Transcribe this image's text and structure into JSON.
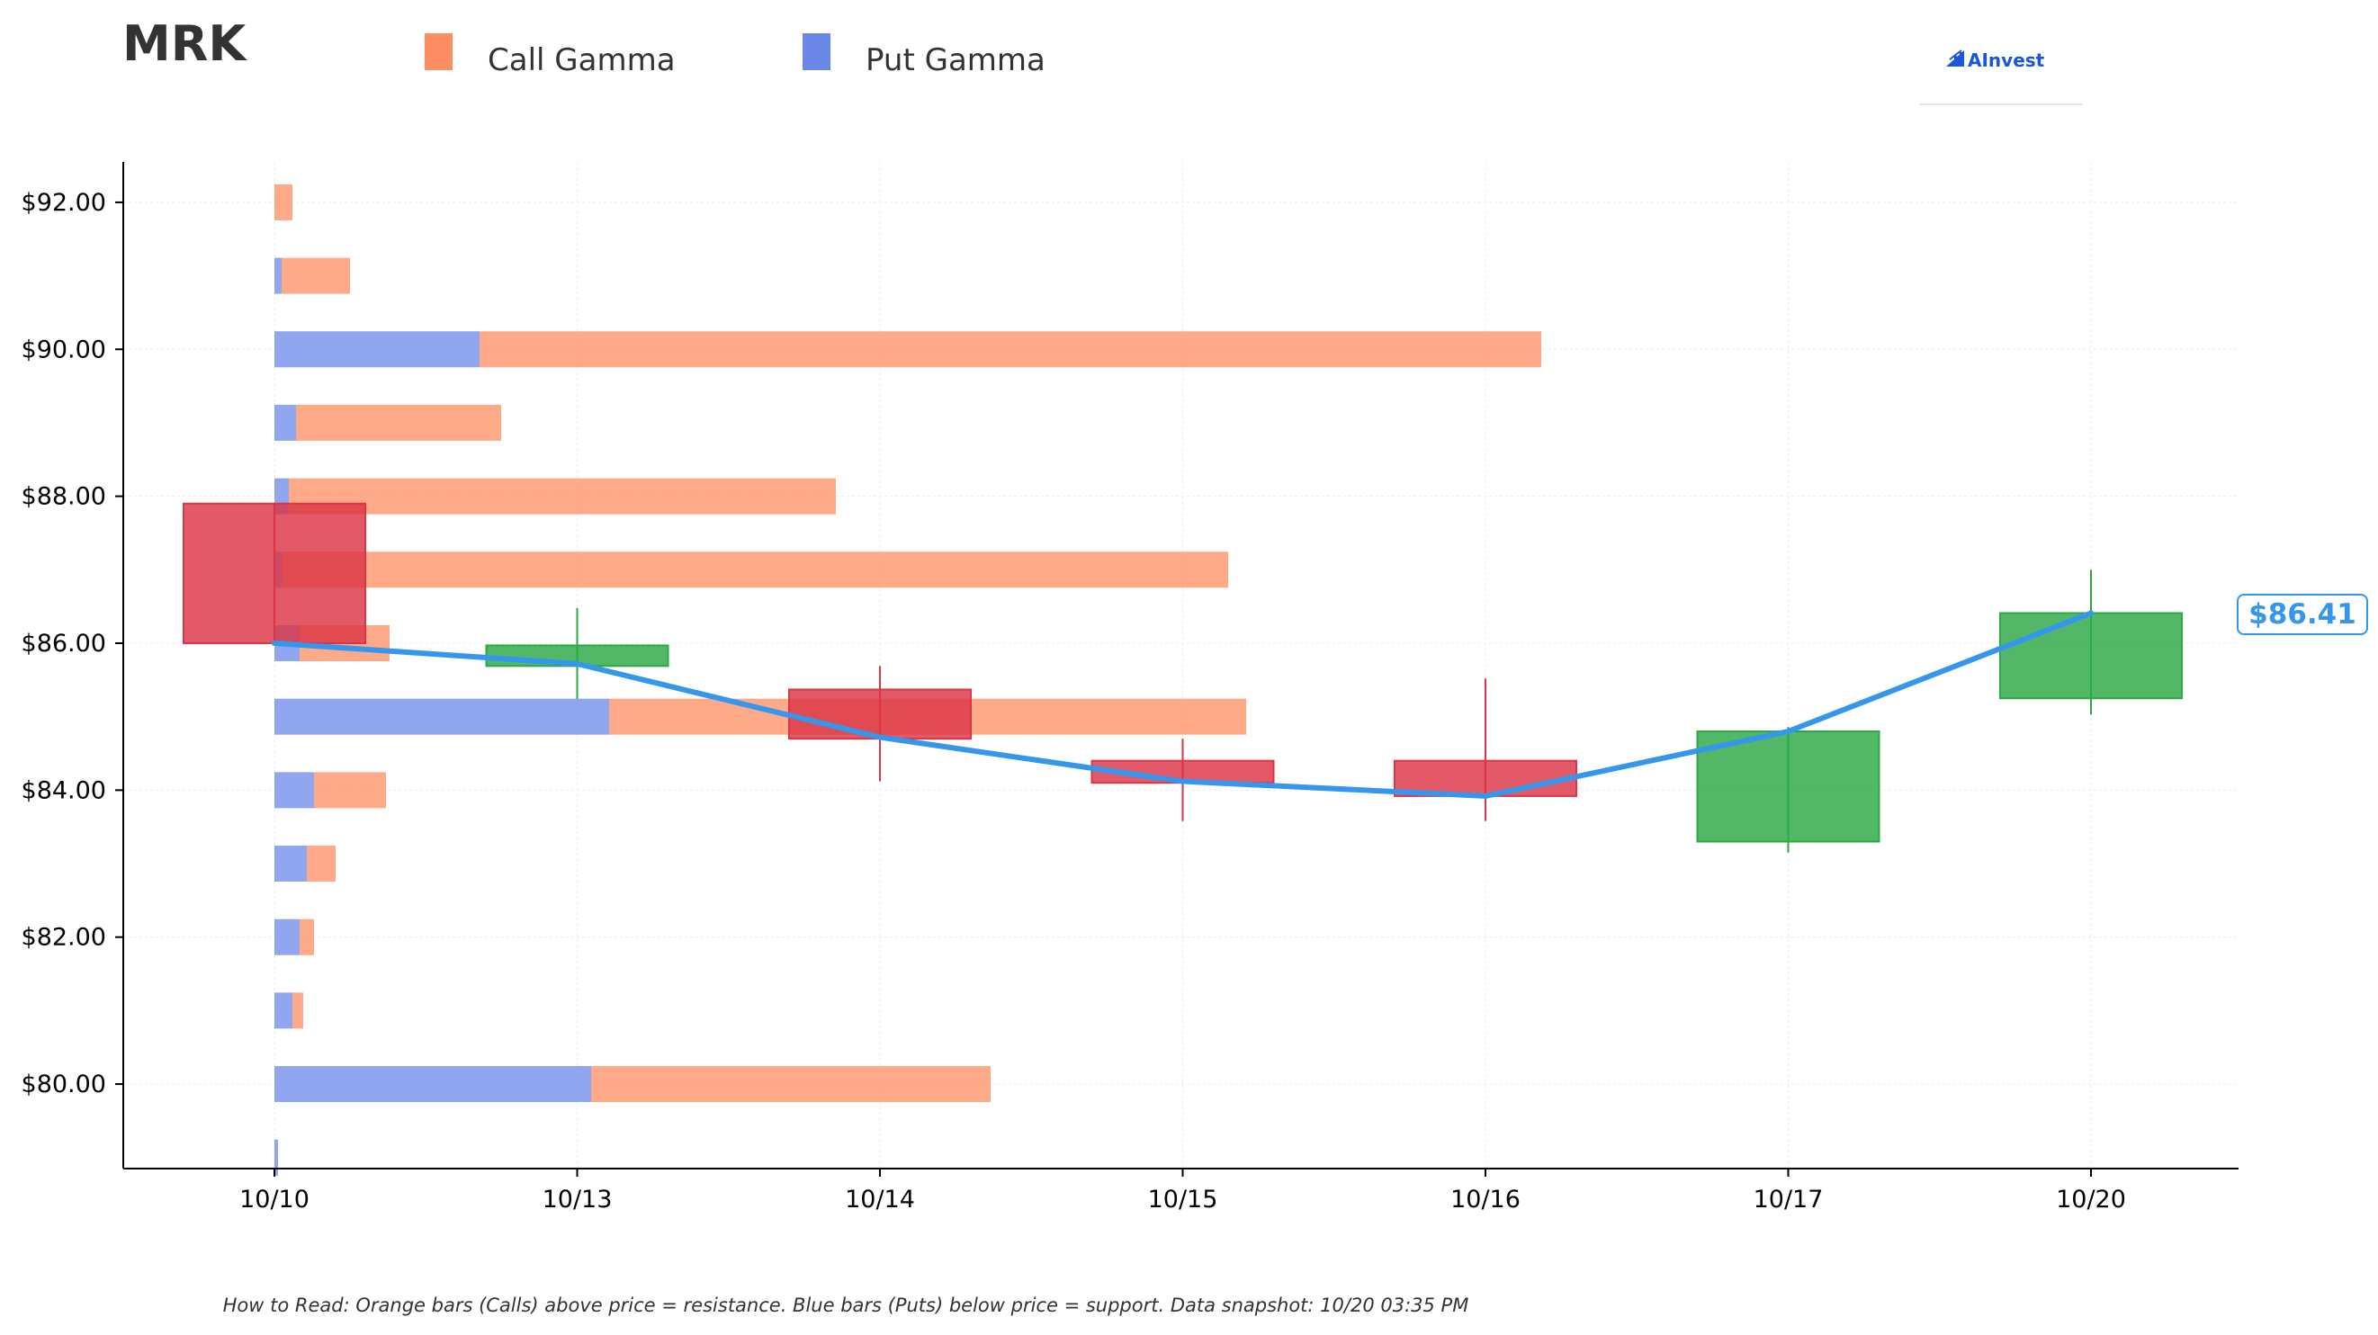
{
  "chart_data": {
    "type": "candlestick",
    "ticker": "MRK",
    "legend": [
      {
        "label": "Call Gamma",
        "color": "#fd8d62"
      },
      {
        "label": "Put Gamma",
        "color": "#6b88e8"
      }
    ],
    "brand": "AInvest",
    "colors": {
      "call": "#fd8d62",
      "put": "#6b88e8",
      "up": "#2ca845",
      "down": "#dc3545",
      "line": "#3596ee"
    },
    "xlabels": [
      "10/10",
      "10/13",
      "10/14",
      "10/15",
      "10/16",
      "10/17",
      "10/20"
    ],
    "ylim": [
      78.85,
      92.55
    ],
    "yticks": [
      80,
      82,
      84,
      86,
      88,
      90,
      92
    ],
    "ytick_labels": [
      "$80.00",
      "$82.00",
      "$84.00",
      "$86.00",
      "$88.00",
      "$90.00",
      "$92.00"
    ],
    "grid": true,
    "candles": [
      {
        "date": "10/10",
        "open": 87.9,
        "high": 87.9,
        "low": 86.0,
        "close": 86.0
      },
      {
        "date": "10/13",
        "open": 85.69,
        "high": 86.48,
        "low": 85.24,
        "close": 85.97
      },
      {
        "date": "10/14",
        "open": 85.37,
        "high": 85.69,
        "low": 84.12,
        "close": 84.7
      },
      {
        "date": "10/15",
        "open": 84.4,
        "high": 84.7,
        "low": 83.58,
        "close": 84.1
      },
      {
        "date": "10/16",
        "open": 84.4,
        "high": 85.52,
        "low": 83.58,
        "close": 83.92
      },
      {
        "date": "10/17",
        "open": 83.3,
        "high": 84.86,
        "low": 83.15,
        "close": 84.8
      },
      {
        "date": "10/20",
        "open": 85.25,
        "high": 87.0,
        "low": 85.03,
        "close": 86.41
      }
    ],
    "price_line": [
      86.0,
      85.72,
      84.72,
      84.12,
      83.92,
      84.8,
      86.41
    ],
    "last_price_label": "$86.41",
    "gamma_strikes": [
      {
        "strike": 92,
        "put": 0.0,
        "call": 0.05
      },
      {
        "strike": 91,
        "put": 0.02,
        "call": 0.19
      },
      {
        "strike": 90,
        "put": 0.57,
        "call": 2.95
      },
      {
        "strike": 89,
        "put": 0.06,
        "call": 0.57
      },
      {
        "strike": 88,
        "put": 0.04,
        "call": 1.52
      },
      {
        "strike": 87,
        "put": 0.02,
        "call": 2.63
      },
      {
        "strike": 86,
        "put": 0.07,
        "call": 0.25
      },
      {
        "strike": 85,
        "put": 0.93,
        "call": 1.77
      },
      {
        "strike": 84,
        "put": 0.11,
        "call": 0.2
      },
      {
        "strike": 83,
        "put": 0.09,
        "call": 0.08
      },
      {
        "strike": 82,
        "put": 0.07,
        "call": 0.04
      },
      {
        "strike": 81,
        "put": 0.05,
        "call": 0.03
      },
      {
        "strike": 80,
        "put": 0.88,
        "call": 1.11
      },
      {
        "strike": 79,
        "put": 0.01,
        "call": 0.0
      }
    ],
    "footer": "How to Read: Orange bars (Calls) above price = resistance. Blue bars (Puts) below price = support. Data snapshot: 10/20 03:35 PM"
  }
}
